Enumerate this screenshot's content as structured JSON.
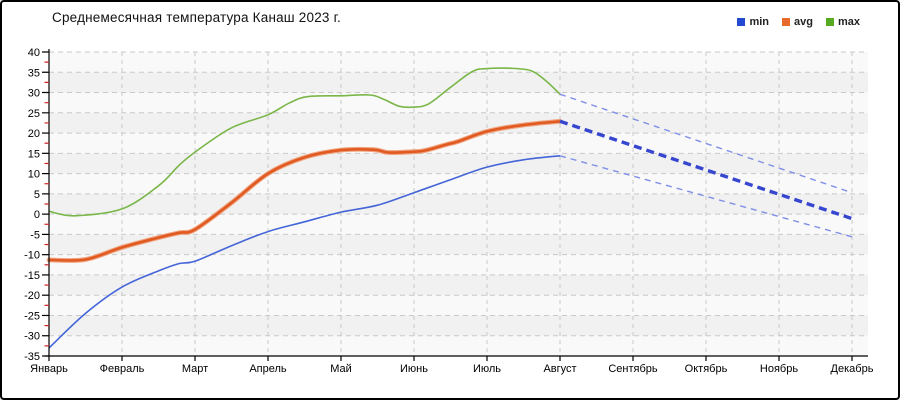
{
  "title": "Среднемесячная температура Канаш  2023 г.",
  "legend": {
    "position": "top-right",
    "items": [
      {
        "label": "min",
        "color": "#2348d1"
      },
      {
        "label": "avg",
        "color": "#e8692c"
      },
      {
        "label": "max",
        "color": "#55aa22"
      }
    ]
  },
  "colors": {
    "frame_border": "#000000",
    "page_background": "#ffffff",
    "plot_band_light": "#f9f9f9",
    "plot_band_dark": "#f1f1f1",
    "gridline": "#c9c9c9",
    "axis": "#000000",
    "minor_tick": "#cc2222",
    "min_line": "#4465d8",
    "avg_line": "#e05a22",
    "avg_halo": "#f0956a",
    "max_line": "#7ab648",
    "trend_thick": "#3646cf",
    "trend_thin": "#7e8fe8"
  },
  "chart_data": {
    "type": "line",
    "title": "Среднемесячная температура Канаш  2023 г.",
    "x_categories": [
      "Январь",
      "Февраль",
      "Март",
      "Апрель",
      "Май",
      "Июнь",
      "Июль",
      "Август",
      "Сентябрь",
      "Октябрь",
      "Ноябрь",
      "Декабрь"
    ],
    "y_axis": {
      "min": -35,
      "max": 40,
      "step": 5,
      "minor_step": 2.5
    },
    "grid": true,
    "legend_position": "top-right",
    "observed_span": "Январь–Август (сплошные линии), Август–Декабрь (пунктирный тренд)",
    "monthly_values": {
      "months": [
        "Январь",
        "Февраль",
        "Март",
        "Апрель",
        "Май",
        "Июнь",
        "Июль",
        "Август"
      ],
      "min": [
        -33,
        -18,
        -11.6,
        -4.3,
        0.5,
        5.3,
        11.6,
        14.4
      ],
      "avg": [
        -11.3,
        -8.2,
        -3.8,
        10.0,
        15.8,
        15.4,
        20.4,
        22.9
      ],
      "max": [
        0.7,
        1.3,
        15.3,
        24.5,
        29.2,
        26.4,
        35.9,
        29.6
      ]
    },
    "forecast_trend": {
      "months": [
        "Август",
        "Сентябрь",
        "Октябрь",
        "Ноябрь",
        "Декабрь"
      ],
      "upper": [
        29.6,
        23.5,
        17.4,
        11.4,
        5.3
      ],
      "mid": [
        22.9,
        16.9,
        10.9,
        4.9,
        -1.1
      ],
      "lower": [
        14.4,
        9.4,
        4.4,
        -0.6,
        -5.6
      ]
    },
    "series": [
      {
        "name": "max",
        "style": "solid",
        "color": "#7ab648",
        "width": 1.6,
        "points": [
          [
            0,
            0.7
          ],
          [
            0.35,
            -0.4
          ],
          [
            1,
            1.3
          ],
          [
            1.5,
            7.0
          ],
          [
            1.78,
            12.0
          ],
          [
            2,
            15.3
          ],
          [
            2.5,
            21.3
          ],
          [
            3,
            24.5
          ],
          [
            3.3,
            27.5
          ],
          [
            3.55,
            29.0
          ],
          [
            4,
            29.2
          ],
          [
            4.4,
            29.4
          ],
          [
            4.6,
            28.2
          ],
          [
            4.8,
            26.6
          ],
          [
            5,
            26.4
          ],
          [
            5.2,
            27.2
          ],
          [
            5.5,
            31.3
          ],
          [
            5.8,
            35.2
          ],
          [
            6,
            35.9
          ],
          [
            6.3,
            36.0
          ],
          [
            6.6,
            35.4
          ],
          [
            6.8,
            33.0
          ],
          [
            7,
            29.6
          ]
        ]
      },
      {
        "name": "avg",
        "style": "solid",
        "color": "#e05a22",
        "halo": "#f0956a",
        "width": 2.6,
        "points": [
          [
            0,
            -11.3
          ],
          [
            0.5,
            -11.2
          ],
          [
            1,
            -8.2
          ],
          [
            1.5,
            -5.8
          ],
          [
            1.78,
            -4.6
          ],
          [
            2,
            -3.8
          ],
          [
            2.5,
            2.8
          ],
          [
            3,
            10.0
          ],
          [
            3.5,
            14.0
          ],
          [
            4,
            15.8
          ],
          [
            4.45,
            15.9
          ],
          [
            4.65,
            15.2
          ],
          [
            5,
            15.4
          ],
          [
            5.15,
            15.7
          ],
          [
            5.45,
            17.2
          ],
          [
            5.6,
            17.9
          ],
          [
            6,
            20.4
          ],
          [
            6.5,
            22.0
          ],
          [
            7,
            22.9
          ]
        ]
      },
      {
        "name": "min",
        "style": "solid",
        "color": "#4465d8",
        "width": 1.6,
        "points": [
          [
            0,
            -33
          ],
          [
            0.5,
            -24.5
          ],
          [
            1,
            -18
          ],
          [
            1.5,
            -14
          ],
          [
            1.78,
            -12.2
          ],
          [
            2,
            -11.6
          ],
          [
            2.5,
            -7.8
          ],
          [
            3,
            -4.3
          ],
          [
            3.5,
            -1.9
          ],
          [
            4,
            0.5
          ],
          [
            4.5,
            2.2
          ],
          [
            5,
            5.3
          ],
          [
            5.5,
            8.5
          ],
          [
            6,
            11.6
          ],
          [
            6.5,
            13.4
          ],
          [
            7,
            14.4
          ]
        ]
      },
      {
        "name": "max-trend",
        "style": "dashed",
        "color": "#7e8fe8",
        "width": 1.4,
        "dash": "6 5",
        "points": [
          [
            7,
            29.6
          ],
          [
            11,
            5.3
          ]
        ]
      },
      {
        "name": "avg-trend",
        "style": "dashed",
        "color": "#3646cf",
        "width": 3.4,
        "dash": "8 5",
        "points": [
          [
            7,
            22.9
          ],
          [
            11,
            -1.1
          ]
        ]
      },
      {
        "name": "min-trend",
        "style": "dashed",
        "color": "#7e8fe8",
        "width": 1.4,
        "dash": "6 5",
        "points": [
          [
            7,
            14.4
          ],
          [
            11,
            -5.6
          ]
        ]
      }
    ]
  }
}
